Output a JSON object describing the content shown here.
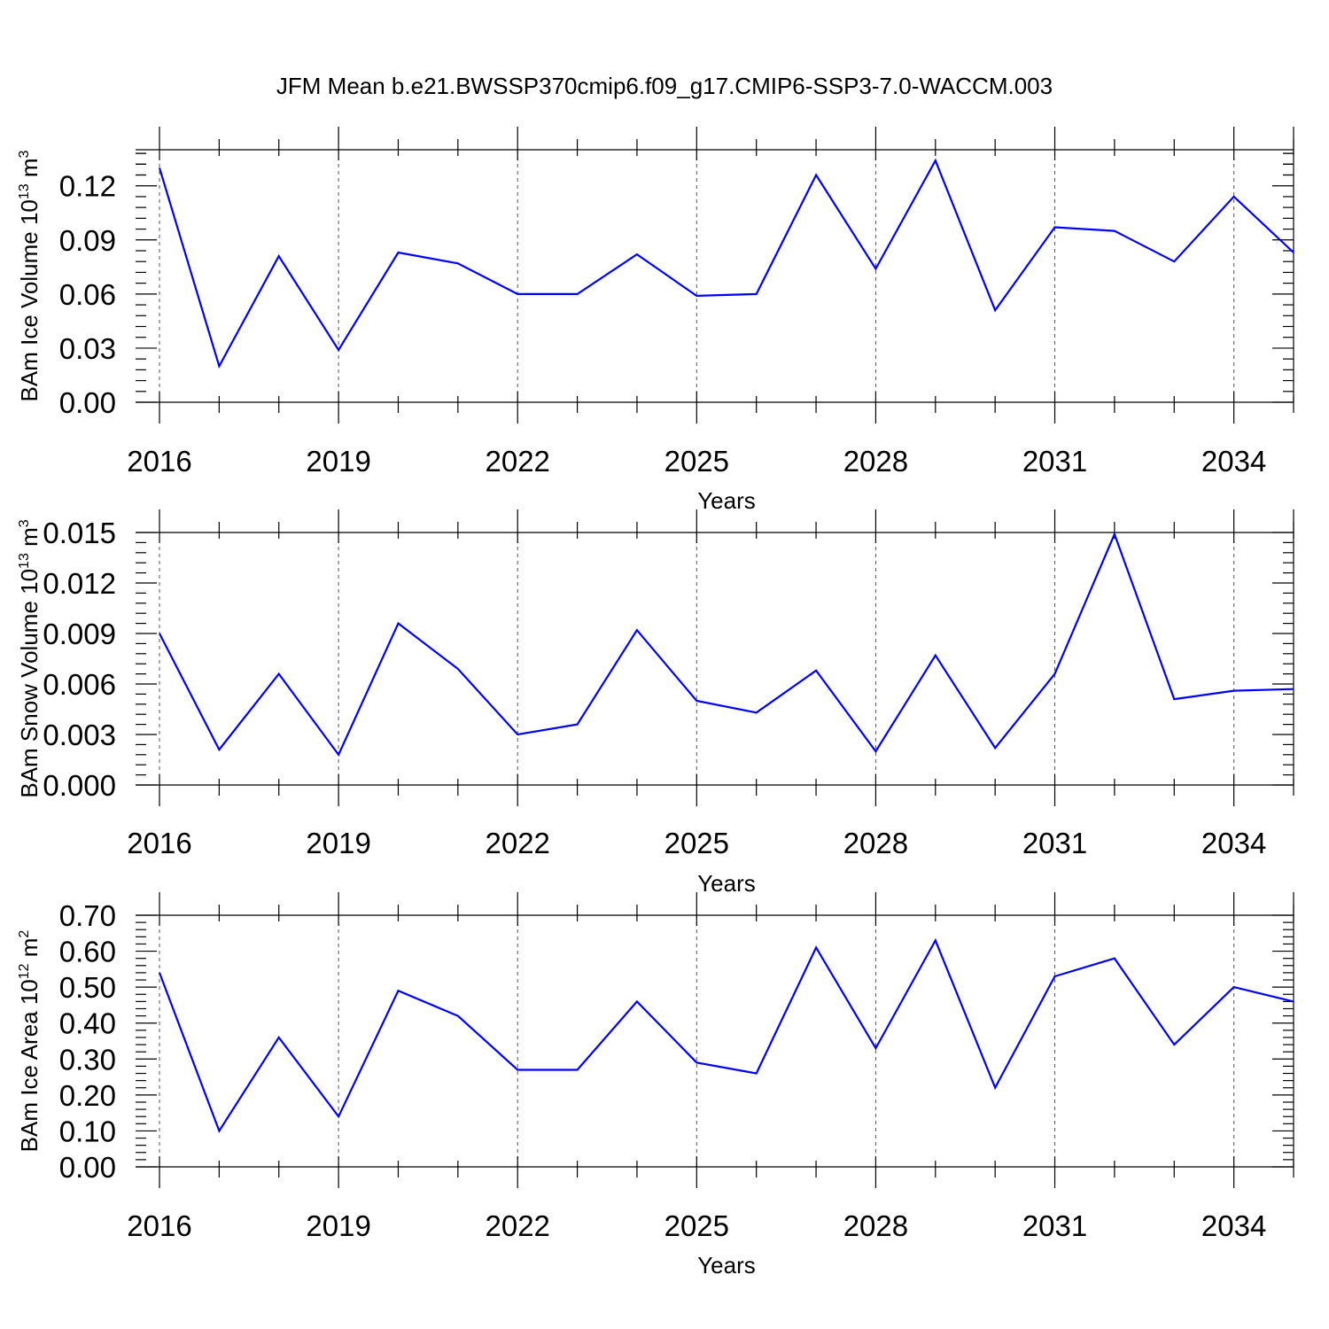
{
  "title": "JFM Mean b.e21.BWSSP370cmip6.f09_g17.CMIP6-SSP3-7.0-WACCM.003",
  "colors": {
    "series": "#0000ff",
    "axis": "#000000",
    "grid": "#555555"
  },
  "chart_data": [
    {
      "type": "line",
      "ylabel": {
        "text": "BAm Ice Volume 10",
        "sup": "13",
        "unit": " m",
        "unit_sup": "3"
      },
      "xlabel": "Years",
      "x": [
        2016,
        2017,
        2018,
        2019,
        2020,
        2021,
        2022,
        2023,
        2024,
        2025,
        2026,
        2027,
        2028,
        2029,
        2030,
        2031,
        2032,
        2033,
        2034,
        2035
      ],
      "xticks": [
        2016,
        2019,
        2022,
        2025,
        2028,
        2031,
        2034
      ],
      "xlim": [
        2016,
        2035
      ],
      "ylim": [
        0,
        0.14
      ],
      "yticks": [
        0.0,
        0.03,
        0.06,
        0.09,
        0.12
      ],
      "ytick_labels": [
        "0.00",
        "0.03",
        "0.06",
        "0.09",
        "0.12"
      ],
      "grid": "vertical dashed at major x ticks",
      "series": [
        {
          "values": [
            0.13,
            0.02,
            0.081,
            0.029,
            0.083,
            0.077,
            0.06,
            0.06,
            0.082,
            0.059,
            0.06,
            0.126,
            0.074,
            0.134,
            0.051,
            0.097,
            0.095,
            0.078,
            0.114,
            0.083
          ]
        }
      ]
    },
    {
      "type": "line",
      "ylabel": {
        "text": "BAm Snow Volume 10",
        "sup": "13",
        "unit": " m",
        "unit_sup": "3"
      },
      "xlabel": "Years",
      "x": [
        2016,
        2017,
        2018,
        2019,
        2020,
        2021,
        2022,
        2023,
        2024,
        2025,
        2026,
        2027,
        2028,
        2029,
        2030,
        2031,
        2032,
        2033,
        2034,
        2035
      ],
      "xticks": [
        2016,
        2019,
        2022,
        2025,
        2028,
        2031,
        2034
      ],
      "xlim": [
        2016,
        2035
      ],
      "ylim": [
        0,
        0.015
      ],
      "yticks": [
        0.0,
        0.003,
        0.006,
        0.009,
        0.012,
        0.015
      ],
      "ytick_labels": [
        "0.000",
        "0.003",
        "0.006",
        "0.009",
        "0.012",
        "0.015"
      ],
      "grid": "vertical dashed at major x ticks",
      "series": [
        {
          "values": [
            0.009,
            0.0021,
            0.0066,
            0.0018,
            0.0096,
            0.0069,
            0.003,
            0.0036,
            0.0092,
            0.005,
            0.0043,
            0.0068,
            0.002,
            0.0077,
            0.0022,
            0.0066,
            0.0149,
            0.0051,
            0.0056,
            0.0057
          ]
        }
      ]
    },
    {
      "type": "line",
      "ylabel": {
        "text": "BAm Ice Area 10",
        "sup": "12",
        "unit": " m",
        "unit_sup": "2"
      },
      "xlabel": "Years",
      "x": [
        2016,
        2017,
        2018,
        2019,
        2020,
        2021,
        2022,
        2023,
        2024,
        2025,
        2026,
        2027,
        2028,
        2029,
        2030,
        2031,
        2032,
        2033,
        2034,
        2035
      ],
      "xticks": [
        2016,
        2019,
        2022,
        2025,
        2028,
        2031,
        2034
      ],
      "xlim": [
        2016,
        2035
      ],
      "ylim": [
        0,
        0.7
      ],
      "yticks": [
        0.0,
        0.1,
        0.2,
        0.3,
        0.4,
        0.5,
        0.6,
        0.7
      ],
      "ytick_labels": [
        "0.00",
        "0.10",
        "0.20",
        "0.30",
        "0.40",
        "0.50",
        "0.60",
        "0.70"
      ],
      "grid": "vertical dashed at major x ticks",
      "series": [
        {
          "values": [
            0.54,
            0.1,
            0.36,
            0.14,
            0.49,
            0.42,
            0.27,
            0.27,
            0.46,
            0.29,
            0.26,
            0.61,
            0.33,
            0.63,
            0.22,
            0.53,
            0.58,
            0.34,
            0.5,
            0.46
          ]
        }
      ]
    }
  ]
}
